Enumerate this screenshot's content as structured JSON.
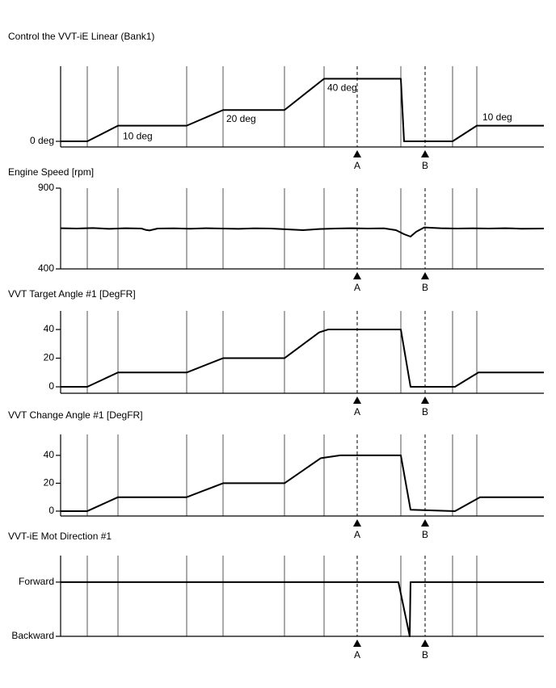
{
  "chart_data": [
    {
      "type": "line",
      "title": "Control the VVT-iE Linear (Bank1)",
      "x": [
        0,
        33,
        71,
        156,
        201,
        277,
        326,
        421,
        425,
        485,
        515,
        598
      ],
      "values": [
        0,
        0,
        10,
        10,
        20,
        20,
        40,
        40,
        0,
        0,
        10,
        10
      ],
      "xlim": [
        0,
        598
      ],
      "ylim": [
        -3.6,
        48
      ],
      "yticks": [
        {
          "value": 0,
          "label": "0 deg"
        }
      ],
      "xgrid": [
        33,
        71,
        156,
        201,
        277,
        326,
        421,
        485,
        515
      ],
      "markers": [
        {
          "label": "A",
          "x": 367
        },
        {
          "label": "B",
          "x": 451
        }
      ],
      "annotations": [
        {
          "text": "10 deg",
          "x": 77,
          "y": 3
        },
        {
          "text": "20 deg",
          "x": 205,
          "y": 14
        },
        {
          "text": "40 deg",
          "x": 330,
          "y": 34
        },
        {
          "text": "10 deg",
          "x": 522,
          "y": 15
        }
      ]
    },
    {
      "type": "line",
      "title": "Engine Speed [rpm]",
      "x": [
        0,
        20,
        40,
        60,
        80,
        100,
        105,
        110,
        120,
        140,
        160,
        180,
        200,
        220,
        240,
        260,
        280,
        300,
        320,
        340,
        360,
        380,
        400,
        415,
        425,
        433,
        440,
        450,
        470,
        490,
        510,
        530,
        550,
        570,
        598
      ],
      "values": [
        652,
        650,
        653,
        648,
        652,
        650,
        642,
        638,
        650,
        651,
        649,
        652,
        650,
        648,
        651,
        650,
        645,
        640,
        647,
        650,
        652,
        650,
        651,
        640,
        615,
        600,
        630,
        657,
        652,
        650,
        651,
        650,
        652,
        649,
        650
      ],
      "xlim": [
        0,
        598
      ],
      "ylim": [
        400,
        900
      ],
      "yticks": [
        400,
        900
      ],
      "xgrid": [
        33,
        71,
        156,
        201,
        277,
        326,
        421,
        485,
        515
      ],
      "markers": [
        {
          "label": "A",
          "x": 367
        },
        {
          "label": "B",
          "x": 451
        }
      ]
    },
    {
      "type": "line",
      "title": "VVT Target Angle #1 [DegFR]",
      "x": [
        0,
        33,
        71,
        156,
        201,
        277,
        320,
        331,
        421,
        433,
        488,
        517,
        598
      ],
      "values": [
        0,
        0,
        10,
        10,
        20,
        20,
        38,
        40,
        40,
        0,
        0,
        10,
        10
      ],
      "xlim": [
        0,
        598
      ],
      "ylim": [
        -4.5,
        53
      ],
      "yticks": [
        0,
        20,
        40
      ],
      "xgrid": [
        33,
        71,
        156,
        201,
        277,
        326,
        421,
        485,
        515
      ],
      "markers": [
        {
          "label": "A",
          "x": 367
        },
        {
          "label": "B",
          "x": 451
        }
      ]
    },
    {
      "type": "line",
      "title": "VVT Change Angle #1 [DegFR]",
      "x": [
        0,
        33,
        71,
        156,
        201,
        277,
        322,
        346,
        421,
        433,
        488,
        519,
        598
      ],
      "values": [
        0,
        0,
        10,
        10,
        20,
        20,
        38,
        40,
        40,
        1,
        0,
        10,
        10
      ],
      "xlim": [
        0,
        598
      ],
      "ylim": [
        -3.5,
        55
      ],
      "yticks": [
        0,
        20,
        40
      ],
      "xgrid": [
        33,
        71,
        156,
        201,
        277,
        326,
        421,
        485,
        515
      ],
      "markers": [
        {
          "label": "A",
          "x": 367
        },
        {
          "label": "B",
          "x": 451
        }
      ]
    },
    {
      "type": "line",
      "title": "VVT-iE Mot Direction #1",
      "x": [
        0,
        418,
        432,
        433,
        598
      ],
      "values": [
        1,
        1,
        0,
        1,
        1
      ],
      "xlim": [
        0,
        598
      ],
      "ylim": [
        0,
        1.49
      ],
      "yticks": [
        {
          "value": 1,
          "label": "Forward"
        },
        {
          "value": 0,
          "label": "Backward"
        }
      ],
      "xgrid": [
        33,
        71,
        156,
        201,
        277,
        326,
        421,
        485,
        515
      ],
      "markers": [
        {
          "label": "A",
          "x": 367
        },
        {
          "label": "B",
          "x": 451
        }
      ]
    }
  ]
}
